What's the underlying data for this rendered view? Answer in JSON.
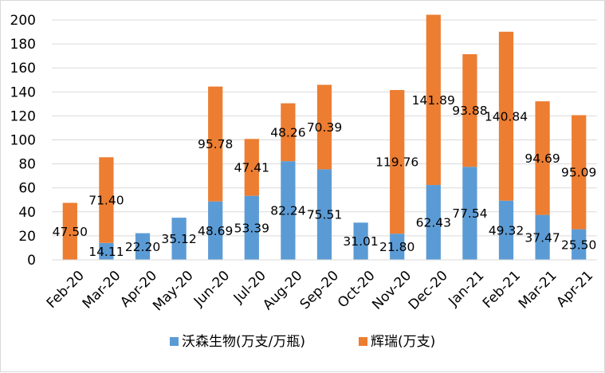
{
  "chart_data": {
    "type": "bar",
    "stacked": true,
    "title": "",
    "xlabel": "",
    "ylabel": "",
    "ylim": [
      0,
      200
    ],
    "yticks": [
      0,
      20,
      40,
      60,
      80,
      100,
      120,
      140,
      160,
      180,
      200
    ],
    "grid": true,
    "legend_position": "bottom",
    "categories": [
      "Feb-20",
      "Mar-20",
      "Apr-20",
      "May-20",
      "Jun-20",
      "Jul-20",
      "Aug-20",
      "Sep-20",
      "Oct-20",
      "Nov-20",
      "Dec-20",
      "Jan-21",
      "Feb-21",
      "Mar-21",
      "Apr-21"
    ],
    "series": [
      {
        "name": "沃森生物(万支/万瓶)",
        "color": "#5b9bd5",
        "values": [
          null,
          14.11,
          22.2,
          35.12,
          48.69,
          53.39,
          82.24,
          75.51,
          31.01,
          21.8,
          62.43,
          77.54,
          49.32,
          37.47,
          25.5
        ],
        "labels": [
          "",
          "14.11",
          "22.20",
          "35.12",
          "48.69",
          "53.39",
          "82.24",
          "75.51",
          "31.01",
          "21.80",
          "62.43",
          "77.54",
          "49.32",
          "37.47",
          "25.50"
        ]
      },
      {
        "name": "辉瑞(万支)",
        "color": "#ed7d31",
        "values": [
          47.5,
          71.4,
          null,
          null,
          95.78,
          47.41,
          48.26,
          70.39,
          null,
          119.76,
          141.89,
          93.88,
          140.84,
          94.69,
          95.09
        ],
        "labels": [
          "47.50",
          "71.40",
          "",
          "",
          "95.78",
          "47.41",
          "48.26",
          "70.39",
          "",
          "119.76",
          "141.89",
          "93.88",
          "140.84",
          "94.69",
          "95.09"
        ]
      }
    ]
  }
}
